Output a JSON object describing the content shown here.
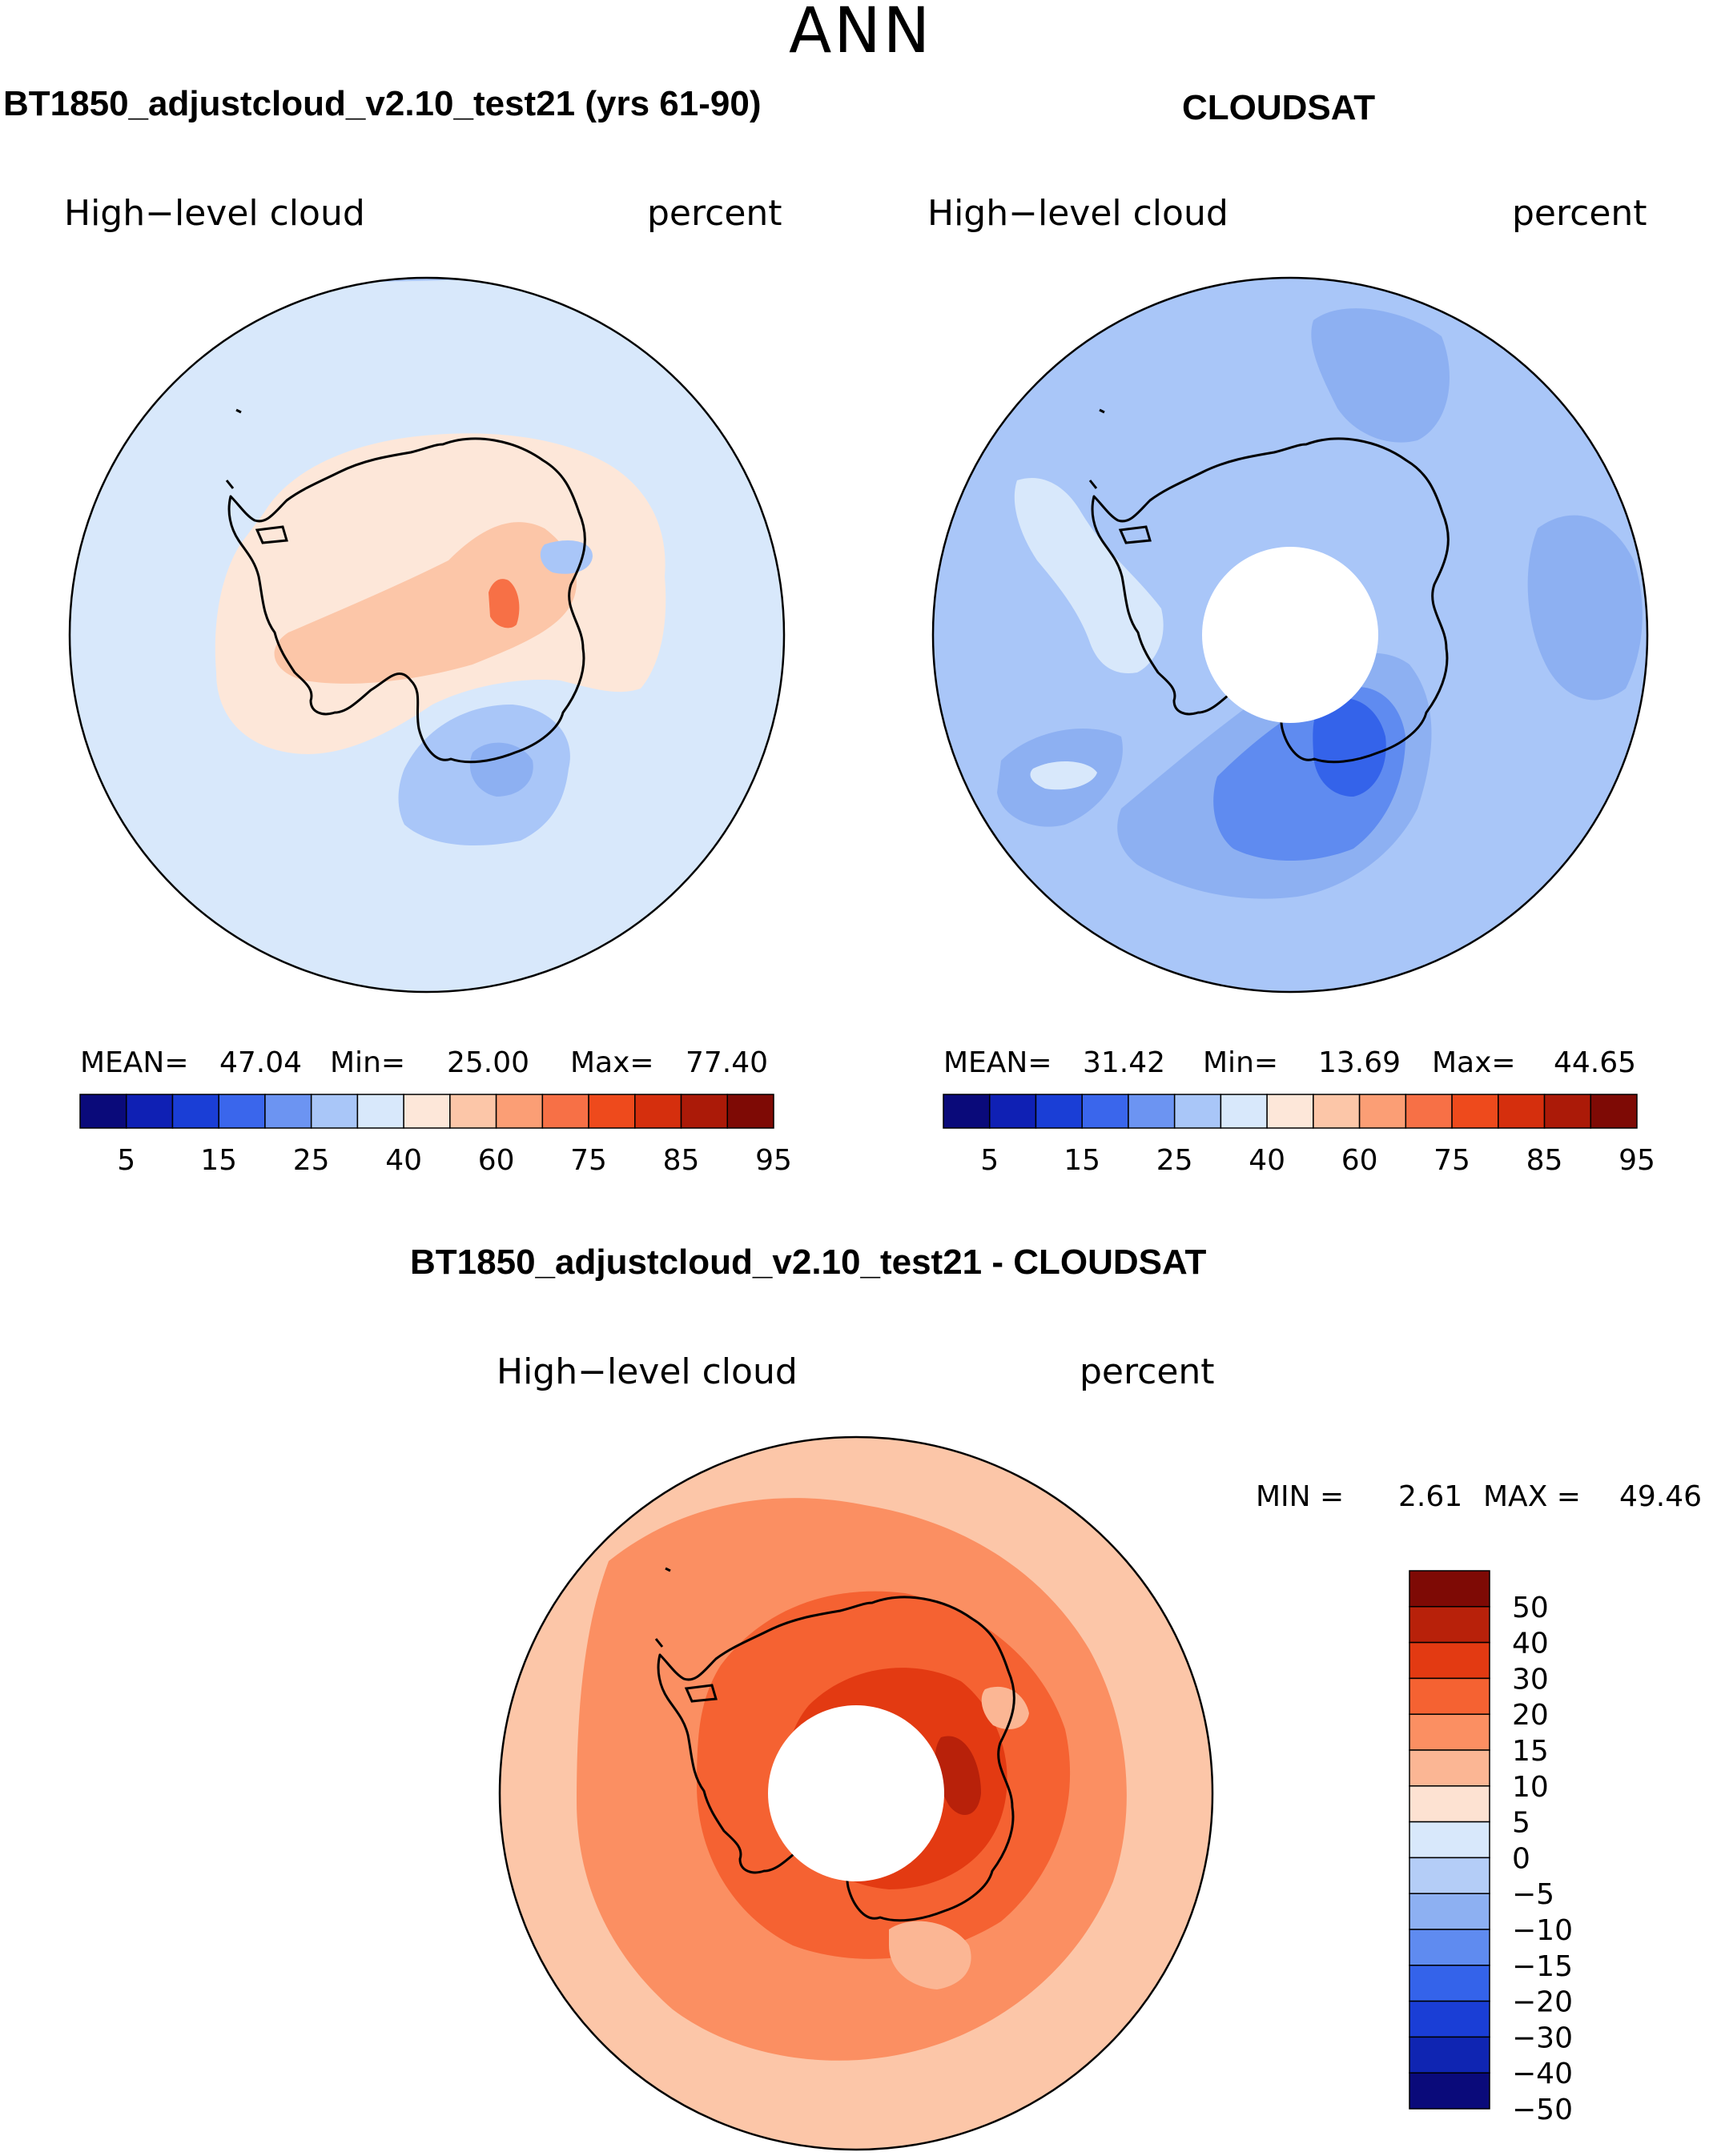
{
  "page": {
    "season": "ANN"
  },
  "panels": {
    "model": {
      "title": "BT1850_adjustcloud_v2.10_test21 (yrs 61-90)",
      "variable": "High−level cloud",
      "units": "percent",
      "stats": {
        "mean_label": "MEAN=",
        "mean": "47.04",
        "min_label": "Min=",
        "min": "25.00",
        "max_label": "Max=",
        "max": "77.40"
      }
    },
    "obs": {
      "title": "CLOUDSAT",
      "variable": "High−level cloud",
      "units": "percent",
      "stats": {
        "mean_label": "MEAN=",
        "mean": "31.42",
        "min_label": "Min=",
        "min": "13.69",
        "max_label": "Max=",
        "max": "44.65"
      }
    },
    "diff": {
      "title": "BT1850_adjustcloud_v2.10_test21 - CLOUDSAT",
      "variable": "High−level cloud",
      "units": "percent",
      "stats": {
        "min_label": "MIN =",
        "min": "2.61",
        "max_label": "MAX =",
        "max": "49.46"
      }
    }
  },
  "colorbars": {
    "abs": {
      "colors": [
        "#0a0a7a",
        "#0f20b4",
        "#1a3ed6",
        "#3a66ec",
        "#6c94f2",
        "#a9c6f8",
        "#d8e8fb",
        "#fde7d9",
        "#fcc6a8",
        "#fb9e75",
        "#f77046",
        "#ee4a1c",
        "#d52f0d",
        "#ab1a08",
        "#7e0a05"
      ],
      "tick_labels": [
        "5",
        "15",
        "25",
        "40",
        "60",
        "75",
        "85",
        "95"
      ]
    },
    "diff": {
      "colors": [
        "#7e0a05",
        "#b8210a",
        "#e33a12",
        "#f56232",
        "#fb8f62",
        "#fbb694",
        "#fde2d2",
        "#d8e8fb",
        "#b4cdf7",
        "#8db0f2",
        "#5f8bf0",
        "#3463ea",
        "#1a3ed6",
        "#0f25b2",
        "#0a0a7a"
      ],
      "tick_labels": [
        "50",
        "40",
        "30",
        "20",
        "15",
        "10",
        "5",
        "0",
        "−5",
        "−10",
        "−15",
        "−20",
        "−30",
        "−40",
        "−50"
      ]
    }
  },
  "map_colors": {
    "coast": "#000000",
    "model_base": "#d8e8fb",
    "obs_base": "#a9c6f8",
    "diff_base": "#fcc6a8"
  }
}
